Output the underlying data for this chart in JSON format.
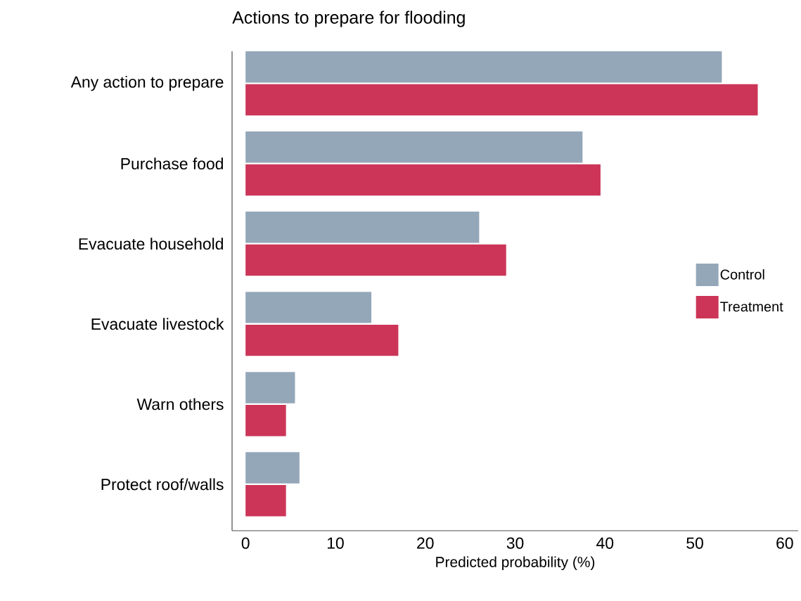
{
  "chart_data": {
    "type": "bar",
    "orientation": "horizontal",
    "title": "Actions to prepare for flooding",
    "xlabel": "Predicted probability (%)",
    "categories": [
      "Any action to prepare",
      "Purchase food",
      "Evacuate household",
      "Evacuate livestock",
      "Warn others",
      "Protect roof/walls"
    ],
    "series": [
      {
        "name": "Control",
        "color": "#94a7b9",
        "values": [
          53,
          37.5,
          26,
          14,
          5.5,
          6
        ]
      },
      {
        "name": "Treatment",
        "color": "#cc3558",
        "values": [
          57,
          39.5,
          29,
          17,
          4.5,
          4.5
        ]
      }
    ],
    "xlim": [
      -1.5,
      61.5
    ],
    "xticks": [
      0,
      10,
      20,
      30,
      40,
      50,
      60
    ],
    "legend": "right"
  }
}
